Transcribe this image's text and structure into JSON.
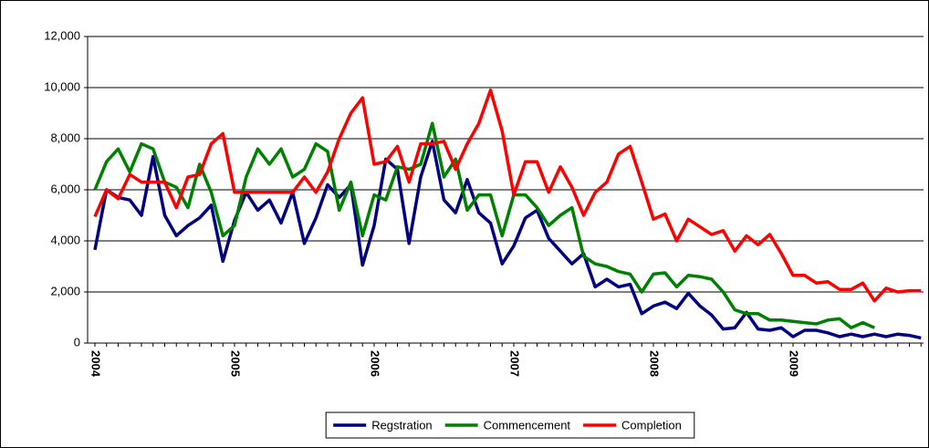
{
  "chart_data": {
    "type": "line",
    "categories": [
      "2004",
      null,
      null,
      null,
      null,
      null,
      null,
      null,
      null,
      null,
      null,
      null,
      "2005",
      null,
      null,
      null,
      null,
      null,
      null,
      null,
      null,
      null,
      null,
      null,
      "2006",
      null,
      null,
      null,
      null,
      null,
      null,
      null,
      null,
      null,
      null,
      null,
      "2007",
      null,
      null,
      null,
      null,
      null,
      null,
      null,
      null,
      null,
      null,
      null,
      "2008",
      null,
      null,
      null,
      null,
      null,
      null,
      null,
      null,
      null,
      null,
      null,
      "2009",
      null,
      null,
      null,
      null,
      null,
      null,
      null,
      null,
      null,
      null,
      null
    ],
    "series": [
      {
        "name": "Regstration",
        "color": "#000080",
        "values": [
          3650,
          6000,
          5700,
          5600,
          5000,
          7300,
          5000,
          4200,
          4600,
          4900,
          5400,
          3200,
          4800,
          5900,
          5200,
          5600,
          4700,
          5900,
          3900,
          4900,
          6200,
          5700,
          6200,
          3050,
          4600,
          7200,
          6800,
          3900,
          6500,
          7900,
          5600,
          5100,
          6400,
          5100,
          4700,
          3100,
          3800,
          4900,
          5200,
          4100,
          3600,
          3100,
          3500,
          2200,
          2500,
          2200,
          2300,
          1150,
          1450,
          1600,
          1350,
          1950,
          1450,
          1100,
          550,
          600,
          1200,
          550,
          500,
          600,
          250,
          500,
          500,
          400,
          250,
          350,
          250,
          350,
          250,
          350,
          300,
          200
        ]
      },
      {
        "name": "Commencement",
        "color": "#008000",
        "values": [
          6000,
          7100,
          7600,
          6700,
          7800,
          7600,
          6300,
          6100,
          5300,
          7000,
          5900,
          4200,
          4600,
          6500,
          7600,
          7000,
          7600,
          6500,
          6800,
          7800,
          7500,
          5200,
          6300,
          4200,
          5800,
          5600,
          6900,
          6800,
          7000,
          8600,
          6500,
          7200,
          5200,
          5800,
          5800,
          4200,
          5800,
          5800,
          5300,
          4600,
          5000,
          5300,
          3400,
          3100,
          3000,
          2800,
          2700,
          2000,
          2700,
          2750,
          2200,
          2650,
          2600,
          2500,
          2000,
          1300,
          1150,
          1150,
          900,
          900,
          850,
          800,
          750,
          900,
          950,
          600,
          800,
          600,
          null,
          null,
          null,
          null
        ]
      },
      {
        "name": "Completion",
        "color": "#ff0000",
        "values": [
          4950,
          6000,
          5650,
          6600,
          6300,
          6300,
          6300,
          5300,
          6500,
          6600,
          7800,
          8200,
          5900,
          5900,
          5900,
          5900,
          5900,
          5900,
          6500,
          5900,
          6700,
          8000,
          9000,
          9600,
          7000,
          7100,
          7700,
          6300,
          7800,
          7800,
          7900,
          6800,
          7800,
          8600,
          9900,
          8300,
          5800,
          7100,
          7100,
          5900,
          6900,
          6100,
          5000,
          5900,
          6300,
          7400,
          7700,
          6300,
          4850,
          5050,
          4000,
          4850,
          4550,
          4250,
          4400,
          3600,
          4200,
          3850,
          4250,
          3500,
          2650,
          2650,
          2350,
          2400,
          2100,
          2100,
          2350,
          1650,
          2150,
          2000,
          2050,
          2050
        ]
      }
    ],
    "ylim": [
      0,
      12000
    ],
    "yticks": [
      0,
      {
        "value": 2000,
        "label": "2,000"
      },
      {
        "value": 4000,
        "label": "4,000"
      },
      {
        "value": 6000,
        "label": "6,000"
      },
      {
        "value": 8000,
        "label": "8,000"
      },
      {
        "value": 10000,
        "label": "10,000"
      },
      {
        "value": 12000,
        "label": "12,000"
      }
    ],
    "grid": true,
    "legend": "bottom"
  }
}
